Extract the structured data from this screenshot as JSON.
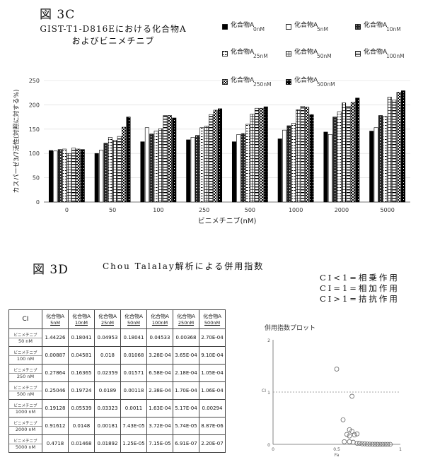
{
  "fig3c_label": "図 3C",
  "chart_title_line1": "GIST-T1-D816Eにおける化合物A",
  "chart_title_line2": "およびビニメチニブ",
  "fig3d_label": "図 3D",
  "fig3d_title": "Chou Talalay解析による併用指数",
  "ci_notes": [
    "CI<1=相乗作用",
    "CI=1=相加作用",
    "CI>1=拮抗作用"
  ],
  "patterns": [
    {
      "id": "solid",
      "fill": "#000000"
    },
    {
      "id": "open",
      "fill": "#ffffff"
    },
    {
      "id": "dots",
      "fill": "#333333"
    },
    {
      "id": "dashh",
      "fill": "#ffffff"
    },
    {
      "id": "grid",
      "fill": "#ffffff"
    },
    {
      "id": "hstripe",
      "fill": "#ffffff"
    },
    {
      "id": "check",
      "fill": "#555555"
    },
    {
      "id": "dense",
      "fill": "#111111"
    }
  ],
  "chart_data": [
    {
      "type": "bar",
      "xlabel": "ビニメチニブ(nM)",
      "ylabel": "カスパーゼ3/7活性(対照に対する%)",
      "ylim": [
        0,
        250
      ],
      "yticks": [
        0,
        50,
        100,
        150,
        200,
        250
      ],
      "categories": [
        "0",
        "50",
        "100",
        "250",
        "500",
        "1000",
        "2000",
        "5000"
      ],
      "legend_position": "top-right",
      "series": [
        {
          "name": "化合物A 0nM",
          "pattern": "solid",
          "legend_text": "化合物A",
          "legend_conc": "0nM",
          "values": [
            106,
            100,
            124,
            128,
            124,
            130,
            144,
            146
          ]
        },
        {
          "name": "化合物A 5nM",
          "pattern": "open",
          "legend_text": "化合物A",
          "legend_conc": "5nM",
          "values": [
            105,
            107,
            153,
            133,
            139,
            148,
            139,
            153
          ]
        },
        {
          "name": "化合物A 10nM",
          "pattern": "dots",
          "legend_text": "化合物A",
          "legend_conc": "10nM",
          "values": [
            108,
            121,
            140,
            137,
            141,
            157,
            175,
            178
          ]
        },
        {
          "name": "化合物A 25nM",
          "pattern": "dashh",
          "legend_text": "化合物A",
          "legend_conc": "25nM",
          "values": [
            109,
            133,
            146,
            153,
            160,
            162,
            186,
            176
          ]
        },
        {
          "name": "化合物A 50nM",
          "pattern": "grid",
          "legend_text": "化合物A",
          "legend_conc": "50nM",
          "values": [
            100,
            127,
            151,
            156,
            181,
            190,
            204,
            216
          ]
        },
        {
          "name": "化合物A 100nM",
          "pattern": "hstripe",
          "legend_text": "化合物A",
          "legend_conc": "100nM",
          "values": [
            111,
            135,
            178,
            180,
            193,
            197,
            197,
            210
          ]
        },
        {
          "name": "化合物A 250nM",
          "pattern": "check",
          "legend_text": "化合物A",
          "legend_conc": "250nM",
          "values": [
            109,
            154,
            178,
            189,
            193,
            195,
            205,
            226
          ]
        },
        {
          "name": "化合物A 500nM",
          "pattern": "dense",
          "legend_text": "化合物A",
          "legend_conc": "500nM",
          "values": [
            108,
            175,
            173,
            192,
            196,
            180,
            214,
            229
          ]
        }
      ]
    },
    {
      "type": "table",
      "corner": "CI",
      "columns": [
        "化合物A 5nM",
        "化合物A 10nM",
        "化合物A 25nM",
        "化合物A 50nM",
        "化合物A 100nM",
        "化合物A 250nM",
        "化合物A 500nM"
      ],
      "rows": [
        {
          "label": "ビニメチニブ 50 nM",
          "values": [
            "1.44226",
            "0.18041",
            "0.04953",
            "0.18041",
            "0.04533",
            "0.00368",
            "2.70E-04"
          ]
        },
        {
          "label": "ビニメチニブ 100 nM",
          "values": [
            "0.00887",
            "0.04581",
            "0.018",
            "0.01068",
            "3.28E-04",
            "3.65E-04",
            "9.10E-04"
          ]
        },
        {
          "label": "ビニメチニブ 250 nM",
          "values": [
            "0.27864",
            "0.16365",
            "0.02359",
            "0.01571",
            "6.58E-04",
            "2.18E-04",
            "1.05E-04"
          ]
        },
        {
          "label": "ビニメチニブ 500 nM",
          "values": [
            "0.25046",
            "0.19724",
            "0.0189",
            "0.00118",
            "2.38E-04",
            "1.70E-04",
            "1.06E-04"
          ]
        },
        {
          "label": "ビニメチニブ 1000 nM",
          "values": [
            "0.19128",
            "0.05539",
            "0.03323",
            "0.0011",
            "1.63E-04",
            "5.17E-04",
            "0.00294"
          ]
        },
        {
          "label": "ビニメチニブ 2000 nM",
          "values": [
            "0.91612",
            "0.0148",
            "0.00181",
            "7.43E-05",
            "3.72E-04",
            "5.74E-05",
            "8.87E-06"
          ]
        },
        {
          "label": "ビニメチニブ 5000 nM",
          "values": [
            "0.4718",
            "0.01468",
            "0.01892",
            "1.25E-05",
            "7.15E-05",
            "6.91E-07",
            "2.20E-07"
          ]
        }
      ]
    },
    {
      "type": "scatter",
      "title": "併用指数プロット",
      "xlabel": "Fa",
      "ylabel": "CI",
      "xlim": [
        0,
        1
      ],
      "ylim": [
        0,
        2
      ],
      "x_ticks": [
        "0",
        "0.5",
        "1"
      ],
      "y_ticks": [
        "0",
        "1",
        "2"
      ],
      "reference_line_y": 1,
      "points": [
        {
          "x": 0.5,
          "y": 1.44
        },
        {
          "x": 0.62,
          "y": 0.92
        },
        {
          "x": 0.55,
          "y": 0.47
        },
        {
          "x": 0.6,
          "y": 0.28
        },
        {
          "x": 0.62,
          "y": 0.25
        },
        {
          "x": 0.58,
          "y": 0.19
        },
        {
          "x": 0.64,
          "y": 0.18
        },
        {
          "x": 0.6,
          "y": 0.16
        },
        {
          "x": 0.66,
          "y": 0.2
        },
        {
          "x": 0.56,
          "y": 0.05
        },
        {
          "x": 0.6,
          "y": 0.05
        },
        {
          "x": 0.63,
          "y": 0.04
        },
        {
          "x": 0.66,
          "y": 0.02
        },
        {
          "x": 0.68,
          "y": 0.02
        },
        {
          "x": 0.7,
          "y": 0.01
        },
        {
          "x": 0.72,
          "y": 0.01
        },
        {
          "x": 0.74,
          "y": 0.005
        },
        {
          "x": 0.76,
          "y": 0.003
        },
        {
          "x": 0.78,
          "y": 0.002
        },
        {
          "x": 0.8,
          "y": 0.001
        },
        {
          "x": 0.82,
          "y": 0.001
        },
        {
          "x": 0.84,
          "y": 0.0005
        },
        {
          "x": 0.86,
          "y": 0.0004
        },
        {
          "x": 0.88,
          "y": 0.0003
        },
        {
          "x": 0.9,
          "y": 0.0002
        },
        {
          "x": 0.92,
          "y": 0.0001
        }
      ]
    }
  ]
}
